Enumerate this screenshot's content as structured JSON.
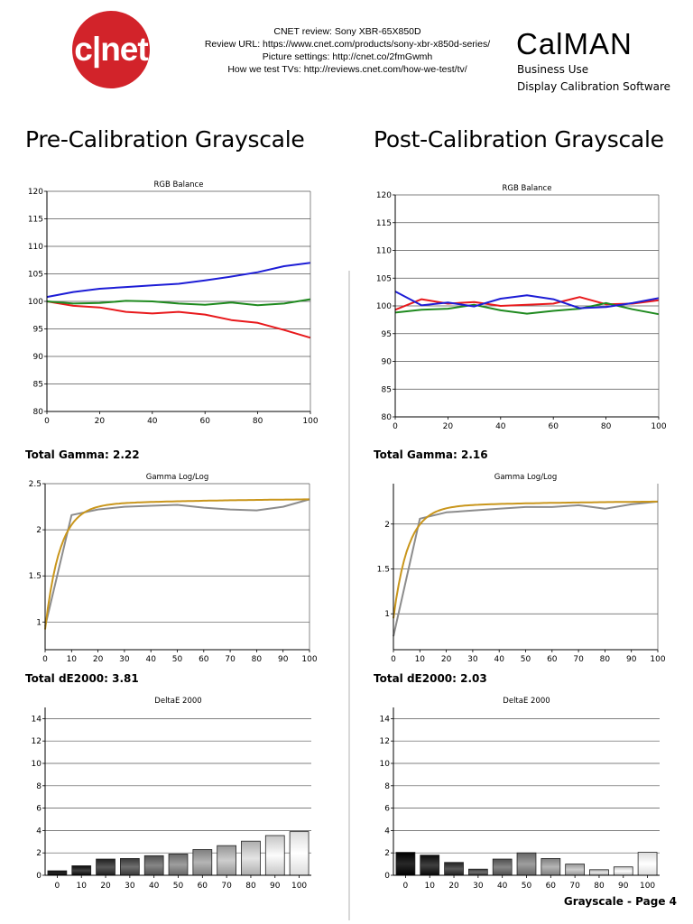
{
  "header": {
    "logo_text": "c|net",
    "line1": "CNET review: Sony XBR-65X850D",
    "line2": "Review URL: https://www.cnet.com/products/sony-xbr-x850d-series/",
    "line3": "Picture settings: http://cnet.co/2fmGwmh",
    "line4": "How we test TVs: http://reviews.cnet.com/how-we-test/tv/"
  },
  "calman": {
    "title": "CalMAN",
    "subtitle1": "Business Use",
    "subtitle2": "Display Calibration Software"
  },
  "pre": {
    "title": "Pre-Calibration Grayscale",
    "gamma_stat": "Total Gamma: 2.22",
    "de_stat": "Total dE2000: 3.81"
  },
  "post": {
    "title": "Post-Calibration Grayscale",
    "gamma_stat": "Total Gamma: 2.16",
    "de_stat": "Total dE2000: 2.03"
  },
  "footer": "Grayscale - Page 4",
  "colors": {
    "red": "#e8191c",
    "green": "#1f8a1f",
    "blue": "#1d1dd6",
    "gamma_measured": "#8c8c8c",
    "gamma_target": "#c9961c",
    "logo": "#d2232a"
  },
  "chart_data": [
    {
      "id": "pre_rgb",
      "type": "line",
      "title": "RGB Balance",
      "x": [
        0,
        10,
        20,
        30,
        40,
        50,
        60,
        70,
        80,
        90,
        100
      ],
      "xlim": [
        0,
        100
      ],
      "xticks": [
        0,
        20,
        40,
        60,
        80,
        100
      ],
      "ylim": [
        80,
        120
      ],
      "yticks": [
        80,
        85,
        90,
        95,
        100,
        105,
        110,
        115,
        120
      ],
      "grid": true,
      "series": [
        {
          "color": "red",
          "values": [
            100,
            99.2,
            98.9,
            98.1,
            97.8,
            98.1,
            97.6,
            96.6,
            96.1,
            94.8,
            93.4
          ]
        },
        {
          "color": "green",
          "values": [
            100,
            99.6,
            99.7,
            100.1,
            100.0,
            99.6,
            99.4,
            99.8,
            99.3,
            99.6,
            100.4
          ]
        },
        {
          "color": "blue",
          "values": [
            100.8,
            101.7,
            102.3,
            102.6,
            102.9,
            103.2,
            103.8,
            104.5,
            105.3,
            106.4,
            107.0
          ]
        }
      ]
    },
    {
      "id": "post_rgb",
      "type": "line",
      "title": "RGB Balance",
      "x": [
        0,
        10,
        20,
        30,
        40,
        50,
        60,
        70,
        80,
        90,
        100
      ],
      "xlim": [
        0,
        100
      ],
      "xticks": [
        0,
        20,
        40,
        60,
        80,
        100
      ],
      "ylim": [
        80,
        120
      ],
      "yticks": [
        80,
        85,
        90,
        95,
        100,
        105,
        110,
        115,
        120
      ],
      "grid": true,
      "series": [
        {
          "color": "red",
          "values": [
            99.3,
            101.2,
            100.4,
            100.7,
            100.0,
            100.2,
            100.4,
            101.6,
            100.3,
            100.4,
            101.0
          ]
        },
        {
          "color": "green",
          "values": [
            98.8,
            99.3,
            99.5,
            100.2,
            99.2,
            98.6,
            99.1,
            99.5,
            100.5,
            99.4,
            98.5
          ]
        },
        {
          "color": "blue",
          "values": [
            102.6,
            100.1,
            100.6,
            99.9,
            101.3,
            101.9,
            101.2,
            99.6,
            99.8,
            100.5,
            101.4
          ]
        }
      ]
    },
    {
      "id": "pre_gamma",
      "type": "line",
      "title": "Gamma Log/Log",
      "x": [
        0,
        10,
        20,
        30,
        40,
        50,
        60,
        70,
        80,
        90,
        100
      ],
      "xlim": [
        0,
        100
      ],
      "xticks": [
        0,
        10,
        20,
        30,
        40,
        50,
        60,
        70,
        80,
        90,
        100
      ],
      "ylim": [
        0.7,
        2.5
      ],
      "yticks": [
        1,
        1.5,
        2,
        2.5
      ],
      "grid": true,
      "series": [
        {
          "color": "gamma_measured",
          "values": [
            0.95,
            2.16,
            2.22,
            2.25,
            2.26,
            2.27,
            2.24,
            2.22,
            2.21,
            2.25,
            2.33
          ]
        },
        {
          "color": "gamma_target",
          "curve": "target",
          "end_value": 2.33,
          "start_value": 0.92
        }
      ]
    },
    {
      "id": "post_gamma",
      "type": "line",
      "title": "Gamma Log/Log",
      "x": [
        0,
        10,
        20,
        30,
        40,
        50,
        60,
        70,
        80,
        90,
        100
      ],
      "xlim": [
        0,
        100
      ],
      "xticks": [
        0,
        10,
        20,
        30,
        40,
        50,
        60,
        70,
        80,
        90,
        100
      ],
      "ylim": [
        0.6,
        2.45
      ],
      "yticks": [
        1,
        1.5,
        2
      ],
      "grid": true,
      "series": [
        {
          "color": "gamma_measured",
          "values": [
            0.75,
            2.06,
            2.13,
            2.15,
            2.17,
            2.19,
            2.19,
            2.21,
            2.17,
            2.22,
            2.25
          ]
        },
        {
          "color": "gamma_target",
          "curve": "target",
          "end_value": 2.25,
          "start_value": 0.95
        }
      ]
    },
    {
      "id": "pre_de",
      "type": "bar",
      "title": "DeltaE 2000",
      "categories": [
        "0",
        "10",
        "20",
        "30",
        "40",
        "50",
        "60",
        "70",
        "80",
        "90",
        "100"
      ],
      "values": [
        0.4,
        0.85,
        1.45,
        1.5,
        1.75,
        1.9,
        2.3,
        2.65,
        3.05,
        3.55,
        3.9
      ],
      "ylim": [
        0,
        15
      ],
      "yticks": [
        0,
        2,
        4,
        6,
        8,
        10,
        12,
        14
      ],
      "grid": true
    },
    {
      "id": "post_de",
      "type": "bar",
      "title": "DeltaE 2000",
      "categories": [
        "0",
        "10",
        "20",
        "30",
        "40",
        "50",
        "60",
        "70",
        "80",
        "90",
        "100"
      ],
      "values": [
        2.05,
        1.8,
        1.15,
        0.55,
        1.45,
        2.0,
        1.5,
        1.0,
        0.5,
        0.75,
        2.05
      ],
      "ylim": [
        0,
        15
      ],
      "yticks": [
        0,
        2,
        4,
        6,
        8,
        10,
        12,
        14
      ],
      "grid": true
    }
  ]
}
